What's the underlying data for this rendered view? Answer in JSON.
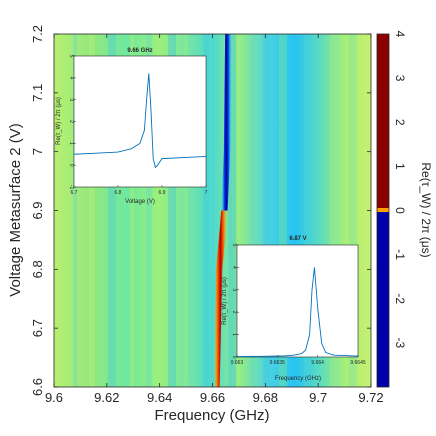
{
  "chart_data": [
    {
      "type": "heatmap",
      "xlabel": "Frequency (GHz)",
      "ylabel": "Voltage Metasurface 2 (V)",
      "xlim": [
        9.6,
        9.72
      ],
      "ylim": [
        6.6,
        7.2
      ],
      "x_ticks": [
        "9.6",
        "9.62",
        "9.64",
        "9.66",
        "9.68",
        "9.7",
        "9.72"
      ],
      "y_ticks": [
        "6.6",
        "6.7",
        "6.8",
        "6.9",
        "7",
        "7.1",
        "7.2"
      ],
      "resonance_line": [
        {
          "voltage": 6.6,
          "frequency": 9.6615
        },
        {
          "voltage": 6.8,
          "frequency": 9.6625
        },
        {
          "voltage": 6.87,
          "frequency": 9.664
        },
        {
          "voltage": 6.9,
          "frequency": 9.6645
        },
        {
          "voltage": 7.0,
          "frequency": 9.6655
        },
        {
          "voltage": 7.2,
          "frequency": 9.666
        }
      ],
      "sign_flip_voltage": 6.9,
      "grid": false,
      "colormap": "jet"
    },
    {
      "type": "colorbar",
      "label": "Re(τ_W) / 2π (μs)",
      "ticks": [
        "4",
        "3",
        "2",
        "1",
        "0",
        "-1",
        "-2",
        "-3"
      ],
      "range": [
        -4,
        4
      ]
    },
    {
      "type": "line",
      "title": "9.66 GHz",
      "xlabel": "Voltage (V)",
      "ylabel": "Re(τ_W) / 2π (μs)",
      "x_ticks": [
        "6.7",
        "6.8",
        "6.9",
        "7"
      ],
      "y_ticks": [
        "-1",
        "0",
        "1",
        "2",
        "3",
        "4",
        "5"
      ],
      "xlim": [
        6.7,
        7.0
      ],
      "ylim": [
        -1,
        5
      ],
      "x": [
        6.7,
        6.75,
        6.8,
        6.83,
        6.85,
        6.86,
        6.865,
        6.87,
        6.875,
        6.88,
        6.885,
        6.89,
        6.9,
        6.95,
        7.0
      ],
      "values": [
        0.5,
        0.55,
        0.6,
        0.75,
        1.0,
        1.6,
        3.0,
        4.2,
        2.5,
        0.3,
        -0.1,
        0.0,
        0.3,
        0.35,
        0.4
      ]
    },
    {
      "type": "line",
      "title": "6.87 V",
      "xlabel": "Frequency (GHz)",
      "ylabel": "Re(τ_W) / 2π (μs)",
      "x_ticks": [
        "9.663",
        "9.6635",
        "9.664",
        "9.6645"
      ],
      "y_ticks": [
        "0",
        "1",
        "2",
        "3",
        "4",
        "5"
      ],
      "xlim": [
        9.663,
        9.6645
      ],
      "ylim": [
        0,
        5
      ],
      "x": [
        9.663,
        9.6633,
        9.6636,
        9.6637,
        9.6638,
        9.66385,
        9.6639,
        9.66393,
        9.66396,
        9.664,
        9.66405,
        9.6641,
        9.6642,
        9.6645
      ],
      "values": [
        0.02,
        0.03,
        0.05,
        0.08,
        0.15,
        0.3,
        1.0,
        3.0,
        4.0,
        2.2,
        0.6,
        0.2,
        0.08,
        0.04
      ]
    }
  ]
}
